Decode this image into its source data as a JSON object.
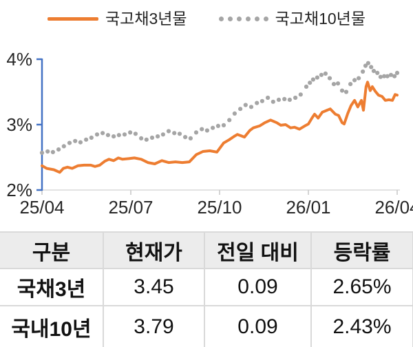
{
  "legend": {
    "items": [
      {
        "label": "국고채3년물"
      },
      {
        "label": "국고채10년물"
      }
    ]
  },
  "chart_data": {
    "type": "line",
    "title": "",
    "x_axis": {
      "tick_labels": [
        "25/04",
        "25/07",
        "25/10",
        "26/01",
        "26/04"
      ],
      "tick_months": [
        0,
        3,
        6,
        9,
        12
      ],
      "range_months": [
        0,
        12
      ]
    },
    "y_axis": {
      "tick_labels": [
        "4%",
        "3%",
        "2%"
      ],
      "tick_values": [
        4,
        3,
        2
      ],
      "min": 2,
      "max": 4,
      "unit": "%"
    },
    "grid": false,
    "legend_position": "top",
    "series": [
      {
        "name": "국고채3년물",
        "style": "solid-line",
        "color": "#ED7D31",
        "x_months": [
          0,
          0.16,
          0.4,
          0.6,
          0.72,
          0.86,
          1.02,
          1.21,
          1.42,
          1.65,
          1.79,
          1.95,
          2.12,
          2.26,
          2.42,
          2.58,
          2.72,
          2.93,
          3.12,
          3.35,
          3.58,
          3.81,
          4.05,
          4.28,
          4.51,
          4.74,
          4.98,
          5.21,
          5.44,
          5.67,
          5.91,
          6.14,
          6.33,
          6.49,
          6.6,
          6.72,
          6.84,
          7.02,
          7.14,
          7.35,
          7.53,
          7.72,
          7.93,
          8.07,
          8.23,
          8.4,
          8.53,
          8.7,
          8.88,
          9,
          9.12,
          9.21,
          9.33,
          9.47,
          9.63,
          9.74,
          9.91,
          10.02,
          10.14,
          10.21,
          10.33,
          10.44,
          10.56,
          10.67,
          10.79,
          10.86,
          10.95,
          11,
          11.09,
          11.16,
          11.26,
          11.37,
          11.49,
          11.6,
          11.72,
          11.84,
          11.93,
          12
        ],
        "values": [
          2.37,
          2.33,
          2.31,
          2.27,
          2.33,
          2.35,
          2.33,
          2.37,
          2.38,
          2.38,
          2.36,
          2.38,
          2.44,
          2.47,
          2.45,
          2.49,
          2.47,
          2.48,
          2.49,
          2.47,
          2.42,
          2.4,
          2.45,
          2.42,
          2.43,
          2.42,
          2.43,
          2.54,
          2.59,
          2.6,
          2.58,
          2.72,
          2.77,
          2.82,
          2.85,
          2.83,
          2.81,
          2.91,
          2.95,
          2.98,
          3.03,
          3.07,
          3.03,
          2.99,
          3,
          2.95,
          2.96,
          2.93,
          2.98,
          3.01,
          3.1,
          3.16,
          3.1,
          3.19,
          3.22,
          3.24,
          3.16,
          3.14,
          3.03,
          3.01,
          3.17,
          3.29,
          3.37,
          3.27,
          3.37,
          3.22,
          3.58,
          3.65,
          3.52,
          3.58,
          3.51,
          3.45,
          3.43,
          3.37,
          3.38,
          3.37,
          3.46,
          3.45
        ]
      },
      {
        "name": "국고채10년물",
        "style": "dotted",
        "color": "#A5A5A5",
        "x_months": [
          0,
          0.19,
          0.37,
          0.56,
          0.74,
          0.93,
          1.12,
          1.3,
          1.49,
          1.67,
          1.86,
          2.05,
          2.23,
          2.42,
          2.6,
          2.79,
          2.98,
          3.16,
          3.35,
          3.53,
          3.72,
          3.91,
          4.09,
          4.28,
          4.47,
          4.65,
          4.84,
          5.02,
          5.21,
          5.4,
          5.58,
          5.77,
          5.95,
          6.14,
          6.33,
          6.51,
          6.7,
          6.88,
          7.07,
          7.26,
          7.44,
          7.63,
          7.81,
          8,
          8.19,
          8.37,
          8.56,
          8.74,
          8.93,
          9.05,
          9.16,
          9.3,
          9.44,
          9.58,
          9.72,
          9.86,
          10,
          10.14,
          10.28,
          10.42,
          10.56,
          10.7,
          10.84,
          10.93,
          11.02,
          11.12,
          11.21,
          11.33,
          11.44,
          11.56,
          11.67,
          11.79,
          11.91,
          12
        ],
        "values": [
          2.57,
          2.59,
          2.58,
          2.62,
          2.67,
          2.72,
          2.75,
          2.73,
          2.77,
          2.8,
          2.85,
          2.87,
          2.84,
          2.82,
          2.84,
          2.85,
          2.88,
          2.86,
          2.79,
          2.77,
          2.8,
          2.82,
          2.85,
          2.9,
          2.87,
          2.86,
          2.81,
          2.79,
          2.88,
          2.93,
          2.91,
          2.95,
          2.98,
          2.99,
          3.07,
          3.17,
          3.24,
          3.3,
          3.27,
          3.33,
          3.36,
          3.41,
          3.35,
          3.38,
          3.39,
          3.38,
          3.41,
          3.46,
          3.58,
          3.64,
          3.69,
          3.72,
          3.76,
          3.78,
          3.71,
          3.62,
          3.63,
          3.52,
          3.5,
          3.62,
          3.68,
          3.71,
          3.81,
          3.9,
          3.94,
          3.88,
          3.82,
          3.79,
          3.73,
          3.74,
          3.74,
          3.76,
          3.74,
          3.79
        ]
      }
    ]
  },
  "table": {
    "headers": [
      "구분",
      "현재가",
      "전일 대비",
      "등락률"
    ],
    "rows": [
      {
        "name": "국채3년",
        "current": "3.45",
        "change": "0.09",
        "change_pct": "2.65%"
      },
      {
        "name": "국내10년",
        "current": "3.79",
        "change": "0.09",
        "change_pct": "2.43%"
      }
    ]
  },
  "colors": {
    "series_3yr": "#ED7D31",
    "series_10yr": "#A5A5A5",
    "y_axis": "#4472C4",
    "x_axis": "#D9D9D9",
    "axis_text": "#262626",
    "table_header_bg": "#ECECEC",
    "table_border": "#D9D9D9"
  }
}
